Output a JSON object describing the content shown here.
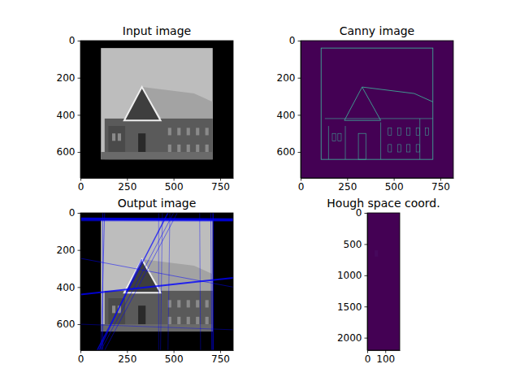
{
  "chart_data": [
    {
      "type": "image",
      "title": "Input image",
      "xlim": [
        0,
        820
      ],
      "ylim": [
        740,
        0
      ],
      "xticks": [
        0,
        250,
        500,
        750
      ],
      "yticks": [
        0,
        200,
        400,
        600
      ]
    },
    {
      "type": "image",
      "title": "Canny image",
      "xlim": [
        0,
        820
      ],
      "ylim": [
        740,
        0
      ],
      "xticks": [
        0,
        250,
        500,
        750
      ],
      "yticks": [
        0,
        200,
        400,
        600
      ]
    },
    {
      "type": "image",
      "title": "Output image",
      "xlim": [
        0,
        820
      ],
      "ylim": [
        740,
        0
      ],
      "xticks": [
        0,
        250,
        500,
        750
      ],
      "yticks": [
        0,
        200,
        400,
        600
      ]
    },
    {
      "type": "image",
      "title": "Hough space coord.",
      "xlim": [
        0,
        180
      ],
      "ylim": [
        2200,
        0
      ],
      "xticks": [
        0,
        100
      ],
      "yticks": [
        0,
        500,
        1000,
        1500,
        2000
      ]
    }
  ]
}
